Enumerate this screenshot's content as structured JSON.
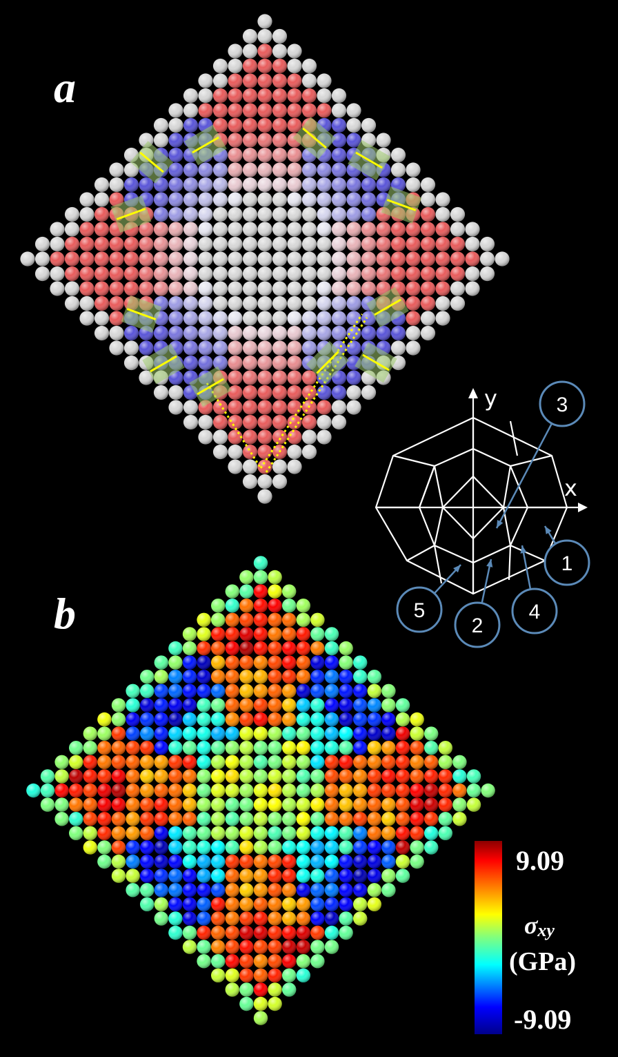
{
  "panels": [
    {
      "label": "a"
    },
    {
      "label": "b"
    }
  ],
  "schematic": {
    "axis_x": "x",
    "axis_y": "y",
    "callouts": [
      "1",
      "2",
      "3",
      "4",
      "5"
    ]
  },
  "colorbar": {
    "max_label": "9.09",
    "min_label": "-9.09",
    "symbol": "σ",
    "subscript": "xy",
    "unit": "(GPa)",
    "colors": [
      "#00008b",
      "#0000ff",
      "#00ffff",
      "#7fff7f",
      "#ffff00",
      "#ff7f00",
      "#ff0000",
      "#8b0000"
    ]
  },
  "colors": {
    "red_grain": "#e85c5c",
    "blue_grain": "#5a55d8",
    "white_atom": "#d8d8d8",
    "marker": "#ffff00",
    "callout_stroke": "#5b8ab8"
  }
}
